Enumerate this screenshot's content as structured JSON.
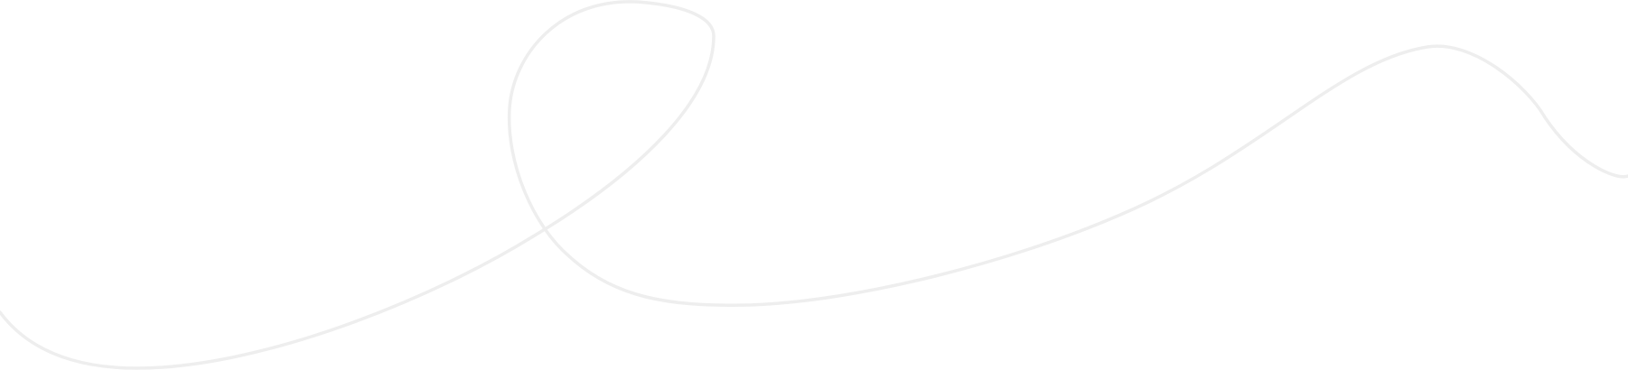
{
  "decoration": {
    "stroke_color": "#eeeeee",
    "background_color": "#ffffff"
  }
}
